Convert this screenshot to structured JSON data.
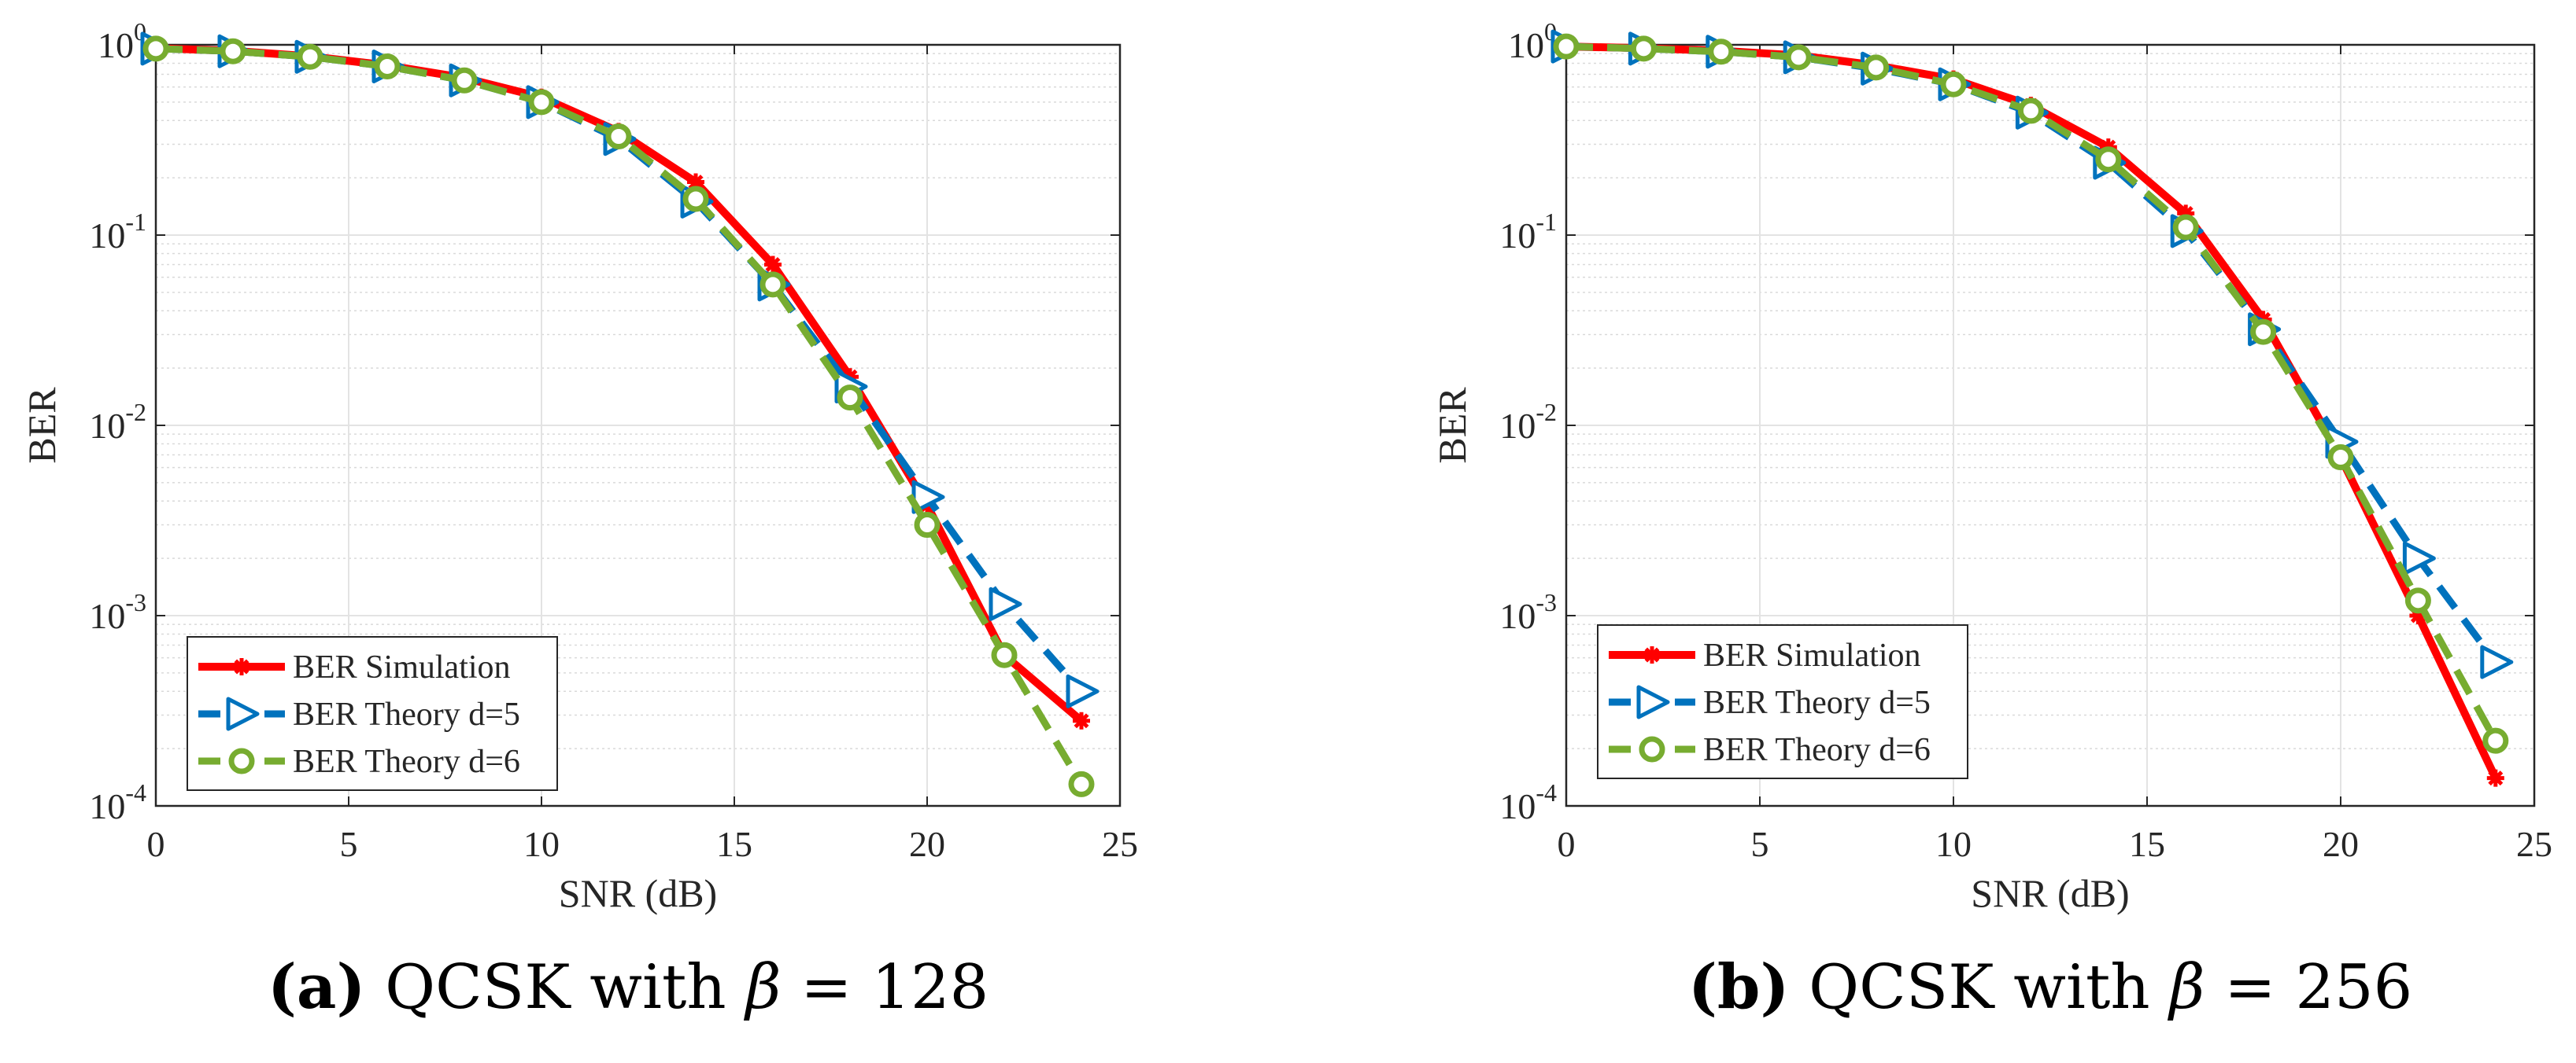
{
  "chart_data": [
    {
      "type": "line",
      "panel": "a",
      "xlabel": "SNR (dB)",
      "ylabel": "BER",
      "xlim": [
        0,
        25
      ],
      "ylim": [
        0.0001,
        1
      ],
      "yscale": "log",
      "grid": true,
      "legend_position": "bottom-left",
      "xticks": [
        "0",
        "5",
        "10",
        "15",
        "20",
        "25"
      ],
      "yticks": [
        {
          "base": "10",
          "exp": "0"
        },
        {
          "base": "10",
          "exp": "-1"
        },
        {
          "base": "10",
          "exp": "-2"
        },
        {
          "base": "10",
          "exp": "-3"
        },
        {
          "base": "10",
          "exp": "-4"
        }
      ],
      "x": [
        0,
        2,
        4,
        6,
        8,
        10,
        12,
        14,
        16,
        18,
        20,
        22,
        24
      ],
      "series": [
        {
          "name": "BER Simulation",
          "color": "#ff0000",
          "marker": "star",
          "values": [
            0.96,
            0.93,
            0.87,
            0.78,
            0.67,
            0.53,
            0.35,
            0.19,
            0.07,
            0.018,
            0.0038,
            0.00062,
            0.00028
          ]
        },
        {
          "name": "BER Theory d=5",
          "color": "#0072bd",
          "marker": "triangle-right",
          "values": [
            0.955,
            0.925,
            0.865,
            0.77,
            0.65,
            0.5,
            0.32,
            0.15,
            0.055,
            0.016,
            0.0042,
            0.00115,
            0.0004
          ]
        },
        {
          "name": "BER Theory d=6",
          "color": "#77ac30",
          "marker": "circle",
          "values": [
            0.955,
            0.925,
            0.865,
            0.77,
            0.65,
            0.5,
            0.33,
            0.155,
            0.055,
            0.014,
            0.003,
            0.00062,
            0.00013
          ]
        }
      ]
    },
    {
      "type": "line",
      "panel": "b",
      "xlabel": "SNR (dB)",
      "ylabel": "BER",
      "xlim": [
        0,
        25
      ],
      "ylim": [
        0.0001,
        1
      ],
      "yscale": "log",
      "grid": true,
      "legend_position": "bottom-left",
      "xticks": [
        "0",
        "5",
        "10",
        "15",
        "20",
        "25"
      ],
      "yticks": [
        {
          "base": "10",
          "exp": "0"
        },
        {
          "base": "10",
          "exp": "-1"
        },
        {
          "base": "10",
          "exp": "-2"
        },
        {
          "base": "10",
          "exp": "-3"
        },
        {
          "base": "10",
          "exp": "-4"
        }
      ],
      "x": [
        0,
        2,
        4,
        6,
        8,
        10,
        12,
        14,
        16,
        18,
        20,
        22,
        24
      ],
      "series": [
        {
          "name": "BER Simulation",
          "color": "#ff0000",
          "marker": "star",
          "values": [
            0.98,
            0.96,
            0.93,
            0.88,
            0.78,
            0.66,
            0.48,
            0.29,
            0.13,
            0.036,
            0.0068,
            0.001,
            0.00014
          ]
        },
        {
          "name": "BER Theory d=5",
          "color": "#0072bd",
          "marker": "triangle-right",
          "values": [
            0.98,
            0.955,
            0.92,
            0.86,
            0.75,
            0.62,
            0.44,
            0.24,
            0.105,
            0.032,
            0.0082,
            0.002,
            0.00057
          ]
        },
        {
          "name": "BER Theory d=6",
          "color": "#77ac30",
          "marker": "circle",
          "values": [
            0.98,
            0.955,
            0.92,
            0.86,
            0.76,
            0.62,
            0.45,
            0.25,
            0.11,
            0.031,
            0.0068,
            0.0012,
            0.00022
          ]
        }
      ]
    }
  ],
  "captions": [
    {
      "label": "(a)",
      "text_before": "QCSK with",
      "symbol": "β",
      "text_after": "= 128"
    },
    {
      "label": "(b)",
      "text_before": "QCSK with",
      "symbol": "β",
      "text_after": "= 256"
    }
  ]
}
